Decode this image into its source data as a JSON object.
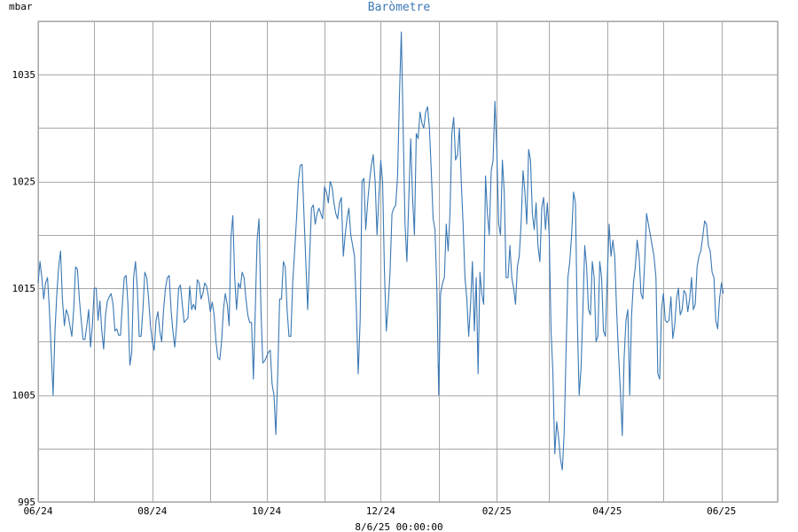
{
  "chart_data": {
    "type": "line",
    "title": "Baròmetre",
    "ylabel": "mbar",
    "xlabel": "8/6/25 00:00:00",
    "ylim": [
      995,
      1040
    ],
    "y_ticks": [
      995,
      1005,
      1015,
      1025,
      1035
    ],
    "x_range": [
      "2024-06-05",
      "2025-07-05"
    ],
    "x_ticks": [
      {
        "label": "06/24",
        "date": "2024-06-05"
      },
      {
        "label": "08/24",
        "date": "2024-08-05"
      },
      {
        "label": "10/24",
        "date": "2024-10-05"
      },
      {
        "label": "12/24",
        "date": "2024-12-05"
      },
      {
        "label": "02/25",
        "date": "2025-02-05"
      },
      {
        "label": "04/25",
        "date": "2025-04-05"
      },
      {
        "label": "06/25",
        "date": "2025-06-05"
      }
    ],
    "grid": true,
    "colors": {
      "line": "#3a78b4",
      "grid": "#a8a8a8",
      "axis": "#9a9a9a",
      "title": "#3a78b4",
      "text": "#000000"
    },
    "series": [
      {
        "start_date": "2024-06-05",
        "step_days": 1,
        "values": [
          1015.5,
          1017.5,
          1016.0,
          1014.0,
          1015.5,
          1016.0,
          1013.0,
          1009.0,
          1005.0,
          1011.0,
          1014.5,
          1017.0,
          1018.5,
          1014.0,
          1011.5,
          1013.0,
          1012.5,
          1011.5,
          1010.5,
          1013.0,
          1017.0,
          1016.8,
          1014.0,
          1012.0,
          1010.2,
          1010.2,
          1011.5,
          1013.0,
          1009.5,
          1011.5,
          1015.0,
          1015.0,
          1012.0,
          1013.8,
          1011.0,
          1009.3,
          1012.5,
          1013.8,
          1014.2,
          1014.5,
          1013.5,
          1011.0,
          1011.2,
          1010.6,
          1010.6,
          1013.5,
          1016.0,
          1016.2,
          1013.5,
          1007.8,
          1009.0,
          1016.0,
          1017.5,
          1015.0,
          1010.5,
          1010.5,
          1013.0,
          1016.5,
          1016.0,
          1014.0,
          1011.5,
          1010.0,
          1009.2,
          1012.0,
          1012.8,
          1011.0,
          1010.0,
          1013.0,
          1015.0,
          1016.0,
          1016.2,
          1013.0,
          1011.0,
          1009.5,
          1011.5,
          1015.0,
          1015.3,
          1013.5,
          1011.8,
          1012.0,
          1012.2,
          1015.2,
          1013.0,
          1013.5,
          1013.0,
          1015.8,
          1015.5,
          1014.0,
          1014.5,
          1015.5,
          1015.2,
          1014.2,
          1012.8,
          1013.7,
          1012.5,
          1010.0,
          1008.5,
          1008.3,
          1010.0,
          1013.0,
          1014.5,
          1013.5,
          1011.5,
          1019.8,
          1021.8,
          1016.0,
          1013.0,
          1015.5,
          1015.0,
          1016.5,
          1016.0,
          1014.0,
          1012.5,
          1011.8,
          1011.8,
          1006.5,
          1013.0,
          1019.5,
          1021.5,
          1013.0,
          1008.0,
          1008.2,
          1008.6,
          1009.0,
          1009.2,
          1006.0,
          1005.0,
          1001.3,
          1007.2,
          1014.0,
          1014.0,
          1017.5,
          1017.0,
          1013.0,
          1010.5,
          1010.5,
          1015.5,
          1018.5,
          1021.5,
          1025.0,
          1026.5,
          1026.6,
          1022.0,
          1017.5,
          1013.0,
          1018.0,
          1022.5,
          1022.8,
          1021.0,
          1022.0,
          1022.5,
          1022.0,
          1021.5,
          1024.5,
          1024.0,
          1023.0,
          1025.0,
          1024.5,
          1023.0,
          1022.0,
          1021.5,
          1023.0,
          1023.5,
          1018.0,
          1020.0,
          1021.5,
          1022.5,
          1020.0,
          1019.0,
          1018.0,
          1013.0,
          1007.0,
          1012.0,
          1025.0,
          1025.3,
          1020.5,
          1023.0,
          1025.0,
          1026.5,
          1027.5,
          1025.0,
          1020.0,
          1023.5,
          1027.0,
          1025.0,
          1016.5,
          1011.0,
          1013.5,
          1016.5,
          1022.0,
          1022.5,
          1022.8,
          1025.5,
          1033.0,
          1039.0,
          1030.0,
          1021.0,
          1017.5,
          1023.5,
          1029.0,
          1023.5,
          1020.0,
          1029.5,
          1029.0,
          1031.5,
          1030.5,
          1030.0,
          1031.5,
          1032.0,
          1030.0,
          1026.0,
          1021.5,
          1020.5,
          1015.0,
          1005.0,
          1014.5,
          1015.5,
          1016.0,
          1021.0,
          1018.5,
          1022.0,
          1029.5,
          1031.0,
          1027.0,
          1027.5,
          1030.0,
          1025.0,
          1021.0,
          1016.0,
          1014.0,
          1010.5,
          1013.5,
          1017.5,
          1011.0,
          1016.0,
          1007.0,
          1016.5,
          1014.5,
          1013.5,
          1025.5,
          1022.0,
          1020.0,
          1026.0,
          1027.0,
          1032.5,
          1028.0,
          1021.0,
          1020.0,
          1027.0,
          1024.0,
          1016.0,
          1016.0,
          1019.0,
          1016.0,
          1015.0,
          1013.5,
          1017.0,
          1018.0,
          1021.0,
          1026.0,
          1024.0,
          1021.0,
          1028.0,
          1027.0,
          1022.0,
          1020.5,
          1023.0,
          1019.0,
          1017.5,
          1022.5,
          1023.5,
          1020.5,
          1023.0,
          1020.0,
          1011.0,
          1007.0,
          999.5,
          1002.5,
          1001.0,
          999.0,
          998.0,
          1001.5,
          1009.0,
          1016.0,
          1017.5,
          1020.0,
          1024.0,
          1023.0,
          1012.0,
          1005.0,
          1007.5,
          1013.0,
          1019.0,
          1017.0,
          1013.0,
          1012.5,
          1017.5,
          1016.0,
          1010.0,
          1010.5,
          1017.5,
          1016.0,
          1011.0,
          1010.5,
          1016.0,
          1021.0,
          1018.0,
          1019.5,
          1018.0,
          1013.0,
          1009.0,
          1005.5,
          1001.2,
          1008.5,
          1012.0,
          1013.0,
          1005.0,
          1012.5,
          1015.5,
          1017.0,
          1019.5,
          1018.0,
          1014.5,
          1014.0,
          1017.5,
          1022.0,
          1021.0,
          1020.0,
          1019.0,
          1018.0,
          1016.0,
          1007.0,
          1006.5,
          1013.0,
          1014.5,
          1012.0,
          1011.8,
          1012.0,
          1014.2,
          1010.3,
          1011.5,
          1014.0,
          1015.0,
          1012.5,
          1013.0,
          1014.8,
          1014.5,
          1012.8,
          1014.0,
          1016.0,
          1013.0,
          1013.5,
          1017.0,
          1018.0,
          1018.5,
          1019.8,
          1021.3,
          1021.0,
          1019.0,
          1018.5,
          1016.5,
          1016.0,
          1012.0,
          1011.2,
          1014.0,
          1015.5,
          1014.5
        ]
      }
    ]
  }
}
